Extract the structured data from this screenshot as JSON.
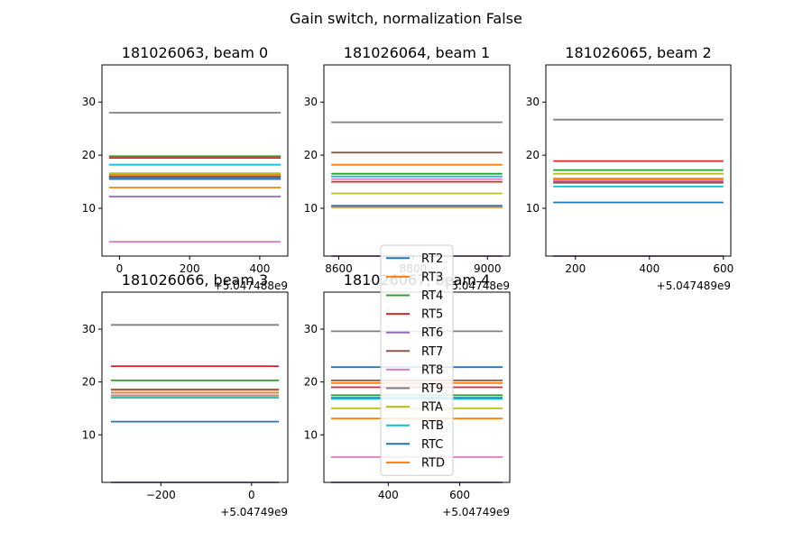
{
  "figure": {
    "suptitle": "Gain switch, normalization False"
  },
  "legend": {
    "entries": [
      {
        "label": "RT2",
        "color": "#1f77b4"
      },
      {
        "label": "RT3",
        "color": "#ff7f0e"
      },
      {
        "label": "RT4",
        "color": "#2ca02c"
      },
      {
        "label": "RT5",
        "color": "#d62728"
      },
      {
        "label": "RT6",
        "color": "#9467bd"
      },
      {
        "label": "RT7",
        "color": "#8c564b"
      },
      {
        "label": "RT8",
        "color": "#e377c2"
      },
      {
        "label": "RT9",
        "color": "#7f7f7f"
      },
      {
        "label": "RTA",
        "color": "#bcbd22"
      },
      {
        "label": "RTB",
        "color": "#17becf"
      },
      {
        "label": "RTC",
        "color": "#1f77b4"
      },
      {
        "label": "RTD",
        "color": "#ff7f0e"
      }
    ]
  },
  "chart_data": [
    {
      "type": "line",
      "title": "181026063, beam 0",
      "xlim": [
        -50,
        480
      ],
      "ylim": [
        1,
        37
      ],
      "xticks": [
        0,
        200,
        400
      ],
      "xtick_labels": [
        "0",
        "200",
        "400"
      ],
      "yticks": [
        10,
        20,
        30
      ],
      "ytick_labels": [
        "10",
        "20",
        "30"
      ],
      "offset_label": "+5.047488e9",
      "x": [
        -30,
        460
      ],
      "series": [
        {
          "name": "RT2",
          "values": [
            15.8,
            15.8
          ]
        },
        {
          "name": "RT3",
          "values": [
            13.9,
            13.9
          ]
        },
        {
          "name": "RT4",
          "values": [
            19.8,
            19.8
          ]
        },
        {
          "name": "RT5",
          "values": [
            19.5,
            19.5
          ]
        },
        {
          "name": "RT6",
          "values": [
            12.2,
            12.2
          ]
        },
        {
          "name": "RT7",
          "values": [
            16.0,
            16.0
          ]
        },
        {
          "name": "RT8",
          "values": [
            3.7,
            3.7
          ]
        },
        {
          "name": "RT9",
          "values": [
            28.0,
            28.0
          ]
        },
        {
          "name": "RTA",
          "values": [
            16.6,
            16.6
          ]
        },
        {
          "name": "RTB",
          "values": [
            18.2,
            18.2
          ]
        },
        {
          "name": "RTC",
          "values": [
            15.5,
            15.5
          ]
        },
        {
          "name": "RTD",
          "values": [
            16.3,
            16.3
          ]
        }
      ]
    },
    {
      "type": "line",
      "title": "181026064, beam 1",
      "xlim": [
        8560,
        9060
      ],
      "ylim": [
        1,
        37
      ],
      "xticks": [
        8600,
        8800,
        9000
      ],
      "xtick_labels": [
        "8600",
        "8800",
        "9000"
      ],
      "yticks": [
        10,
        20,
        30
      ],
      "ytick_labels": [
        "10",
        "20",
        "30"
      ],
      "offset_label": "+5.04748e9",
      "x": [
        8580,
        9040
      ],
      "series": [
        {
          "name": "RT2",
          "values": [
            10.4,
            10.4
          ]
        },
        {
          "name": "RT3",
          "values": [
            18.2,
            18.2
          ]
        },
        {
          "name": "RT4",
          "values": [
            16.5,
            16.5
          ]
        },
        {
          "name": "RT5",
          "values": [
            15.0,
            15.0
          ]
        },
        {
          "name": "RT6",
          "values": [
            1.0,
            1.0
          ]
        },
        {
          "name": "RT7",
          "values": [
            20.5,
            20.5
          ]
        },
        {
          "name": "RT8",
          "values": [
            15.5,
            15.5
          ]
        },
        {
          "name": "RT9",
          "values": [
            26.2,
            26.2
          ]
        },
        {
          "name": "RTA",
          "values": [
            12.8,
            12.8
          ]
        },
        {
          "name": "RTB",
          "values": [
            16.0,
            16.0
          ]
        },
        {
          "name": "RTC",
          "values": [
            10.5,
            10.5
          ]
        },
        {
          "name": "RTD",
          "values": [
            10.2,
            10.2
          ]
        }
      ]
    },
    {
      "type": "line",
      "title": "181026065, beam 2",
      "xlim": [
        120,
        620
      ],
      "ylim": [
        1,
        37
      ],
      "xticks": [
        200,
        400,
        600
      ],
      "xtick_labels": [
        "200",
        "400",
        "600"
      ],
      "yticks": [
        10,
        20,
        30
      ],
      "ytick_labels": [
        "10",
        "20",
        "30"
      ],
      "offset_label": "+5.047489e9",
      "x": [
        140,
        600
      ],
      "series": [
        {
          "name": "RT2",
          "values": [
            15.0,
            15.0
          ]
        },
        {
          "name": "RT3",
          "values": [
            15.5,
            15.5
          ]
        },
        {
          "name": "RT4",
          "values": [
            17.2,
            17.2
          ]
        },
        {
          "name": "RT5",
          "values": [
            18.9,
            18.9
          ]
        },
        {
          "name": "RT6",
          "values": [
            1.0,
            1.0
          ]
        },
        {
          "name": "RT7",
          "values": [
            14.8,
            14.8
          ]
        },
        {
          "name": "RT8",
          "values": [
            15.2,
            15.2
          ]
        },
        {
          "name": "RT9",
          "values": [
            26.7,
            26.7
          ]
        },
        {
          "name": "RTA",
          "values": [
            16.5,
            16.5
          ]
        },
        {
          "name": "RTB",
          "values": [
            14.1,
            14.1
          ]
        },
        {
          "name": "RTC",
          "values": [
            11.1,
            11.1
          ]
        },
        {
          "name": "RTD",
          "values": [
            15.6,
            15.6
          ]
        }
      ]
    },
    {
      "type": "line",
      "title": "181026066, beam 3",
      "xlim": [
        -330,
        80
      ],
      "ylim": [
        1,
        37
      ],
      "xticks": [
        -200,
        0
      ],
      "xtick_labels": [
        "−200",
        "0"
      ],
      "yticks": [
        10,
        20,
        30
      ],
      "ytick_labels": [
        "10",
        "20",
        "30"
      ],
      "offset_label": "+5.04749e9",
      "x": [
        -310,
        60
      ],
      "series": [
        {
          "name": "RT2",
          "values": [
            18.0,
            18.0
          ]
        },
        {
          "name": "RT3",
          "values": [
            18.6,
            18.6
          ]
        },
        {
          "name": "RT4",
          "values": [
            20.3,
            20.3
          ]
        },
        {
          "name": "RT5",
          "values": [
            23.0,
            23.0
          ]
        },
        {
          "name": "RT6",
          "values": [
            1.0,
            1.0
          ]
        },
        {
          "name": "RT7",
          "values": [
            18.5,
            18.5
          ]
        },
        {
          "name": "RT8",
          "values": [
            17.5,
            17.5
          ]
        },
        {
          "name": "RT9",
          "values": [
            30.8,
            30.8
          ]
        },
        {
          "name": "RTA",
          "values": [
            17.3,
            17.3
          ]
        },
        {
          "name": "RTB",
          "values": [
            17.0,
            17.0
          ]
        },
        {
          "name": "RTC",
          "values": [
            12.5,
            12.5
          ]
        },
        {
          "name": "RTD",
          "values": [
            18.0,
            18.0
          ]
        }
      ]
    },
    {
      "type": "line",
      "title": "181026067, beam 4",
      "xlim": [
        220,
        740
      ],
      "ylim": [
        1,
        37
      ],
      "xticks": [
        400,
        600
      ],
      "xtick_labels": [
        "400",
        "600"
      ],
      "yticks": [
        10,
        20,
        30
      ],
      "ytick_labels": [
        "10",
        "20",
        "30"
      ],
      "offset_label": "+5.04749e9",
      "x": [
        240,
        720
      ],
      "series": [
        {
          "name": "RT2",
          "values": [
            17.0,
            17.0
          ]
        },
        {
          "name": "RT3",
          "values": [
            19.8,
            19.8
          ]
        },
        {
          "name": "RT4",
          "values": [
            17.5,
            17.5
          ]
        },
        {
          "name": "RT5",
          "values": [
            19.0,
            19.0
          ]
        },
        {
          "name": "RT6",
          "values": [
            1.0,
            1.0
          ]
        },
        {
          "name": "RT7",
          "values": [
            20.3,
            20.3
          ]
        },
        {
          "name": "RT8",
          "values": [
            5.8,
            5.8
          ]
        },
        {
          "name": "RT9",
          "values": [
            29.6,
            29.6
          ]
        },
        {
          "name": "RTA",
          "values": [
            15.0,
            15.0
          ]
        },
        {
          "name": "RTB",
          "values": [
            16.8,
            16.8
          ]
        },
        {
          "name": "RTC",
          "values": [
            22.8,
            22.8
          ]
        },
        {
          "name": "RTD",
          "values": [
            13.1,
            13.1
          ]
        }
      ]
    }
  ]
}
